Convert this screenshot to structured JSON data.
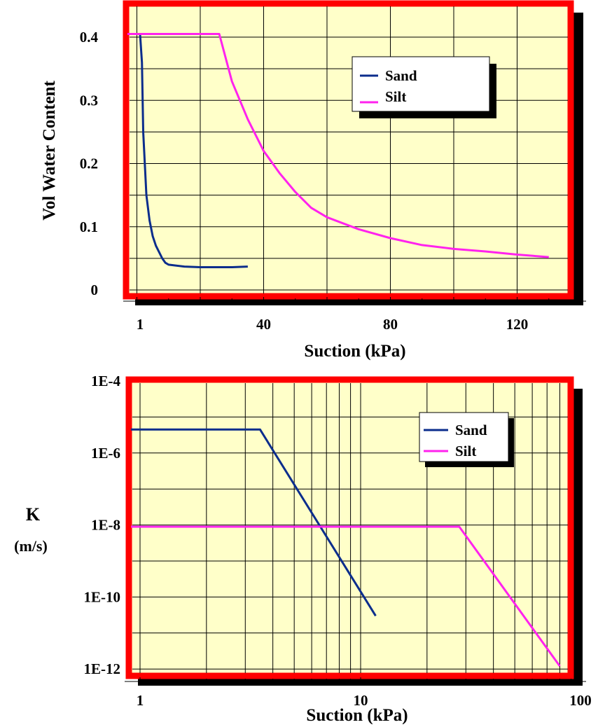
{
  "chart_data": [
    {
      "type": "line",
      "xlabel": "Suction (kPa)",
      "ylabel": "Vol Water Content",
      "xlim": [
        -5,
        140
      ],
      "ylim": [
        0,
        0.425
      ],
      "x_ticks": [
        1,
        40,
        80,
        120
      ],
      "x_tick_labels": [
        "1",
        "40",
        "80",
        "120"
      ],
      "y_ticks": [
        0,
        0.1,
        0.2,
        0.3,
        0.4
      ],
      "y_tick_labels": [
        "0",
        "0.1",
        "0.2",
        "0.3",
        "0.4"
      ],
      "grid": true,
      "legend_position": "top-right",
      "series": [
        {
          "name": "Sand",
          "color": "#0b2d8c",
          "x": [
            -3,
            1,
            1.6,
            2,
            3,
            4,
            5,
            6,
            7,
            8,
            9,
            10,
            15,
            20,
            25,
            30,
            35
          ],
          "y": [
            0.405,
            0.405,
            0.36,
            0.25,
            0.15,
            0.11,
            0.085,
            0.07,
            0.06,
            0.05,
            0.043,
            0.04,
            0.037,
            0.036,
            0.036,
            0.036,
            0.037
          ]
        },
        {
          "name": "Silt",
          "color": "#ff22ee",
          "x": [
            -3,
            26,
            30,
            35,
            40,
            45,
            50,
            55,
            60,
            70,
            80,
            90,
            100,
            110,
            120,
            130
          ],
          "y": [
            0.405,
            0.405,
            0.33,
            0.27,
            0.22,
            0.185,
            0.155,
            0.13,
            0.115,
            0.096,
            0.082,
            0.071,
            0.065,
            0.061,
            0.056,
            0.052
          ]
        }
      ]
    },
    {
      "type": "line",
      "xlabel": "Suction (kPa)",
      "ylabel": "K",
      "ylabel_unit": "(m/s)",
      "x_scale": "log",
      "y_scale": "log",
      "xlim": [
        1,
        100
      ],
      "ylim": [
        1e-12,
        0.0001
      ],
      "x_tick_labels": [
        "1",
        "10",
        "100"
      ],
      "y_tick_labels": [
        "1E-4",
        "1E-6",
        "1E-8",
        "1E-10",
        "1E-12"
      ],
      "grid": true,
      "legend_position": "top-right",
      "series": [
        {
          "name": "Sand",
          "color": "#0b2d8c",
          "x": [
            1,
            3.5,
            11.7
          ],
          "y": [
            4.5e-06,
            4.5e-06,
            3e-11
          ]
        },
        {
          "name": "Silt",
          "color": "#ff22ee",
          "x": [
            1,
            28,
            80
          ],
          "y": [
            9e-09,
            9e-09,
            1.2e-12
          ]
        }
      ]
    }
  ]
}
